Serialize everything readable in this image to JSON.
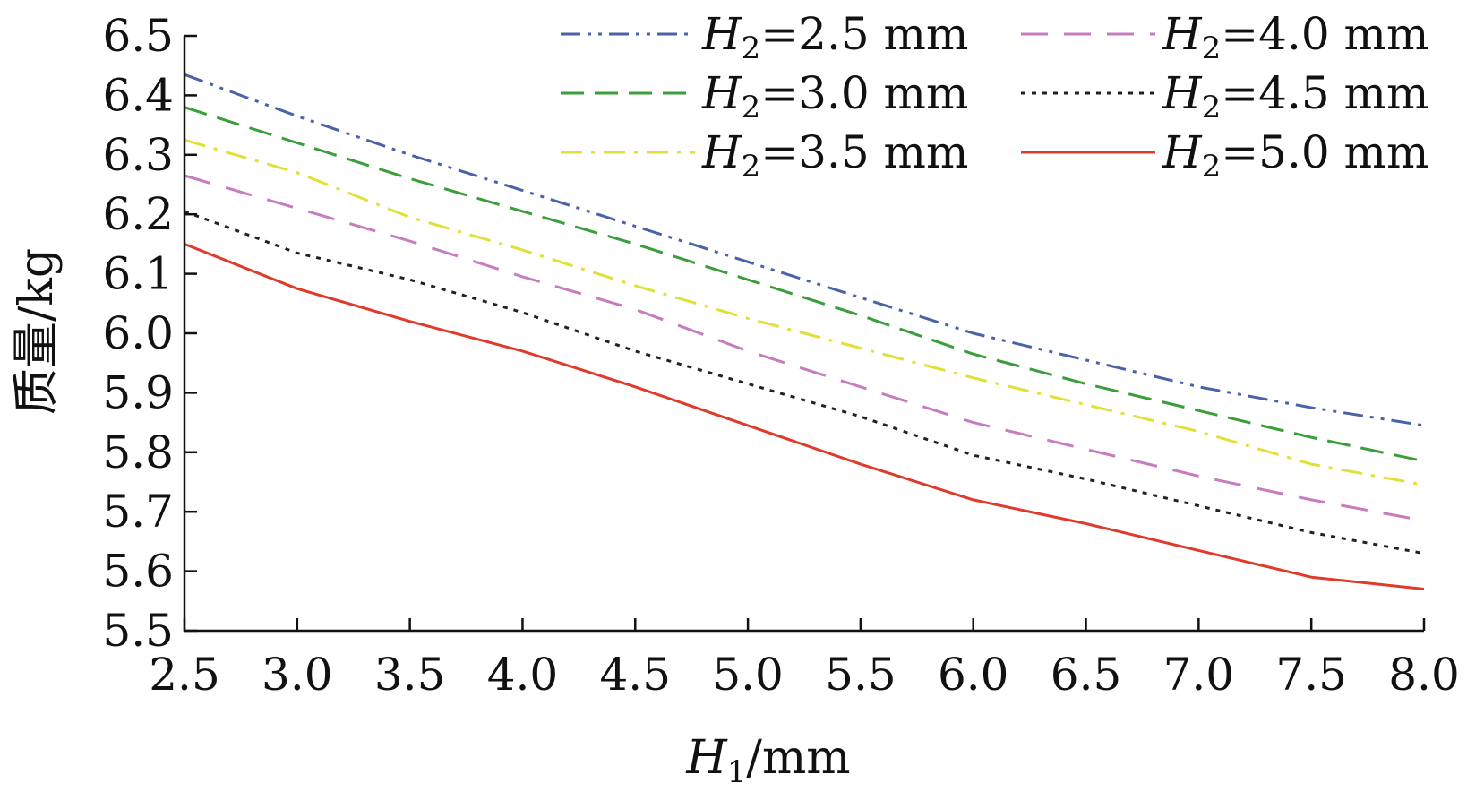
{
  "chart_data": {
    "type": "line",
    "x": [
      2.5,
      3.0,
      3.5,
      4.0,
      4.5,
      5.0,
      5.5,
      6.0,
      6.5,
      7.0,
      7.5,
      8.0
    ],
    "x_tick_labels": [
      "2.5",
      "3.0",
      "3.5",
      "4.0",
      "4.5",
      "5.0",
      "5.5",
      "6.0",
      "6.5",
      "7.0",
      "7.5",
      "8.0"
    ],
    "y_tick_labels": [
      "5.5",
      "5.6",
      "5.7",
      "5.8",
      "5.9",
      "6.0",
      "6.1",
      "6.2",
      "6.3",
      "6.4",
      "6.5"
    ],
    "xlim": [
      2.5,
      8.0
    ],
    "ylim": [
      5.5,
      6.5
    ],
    "xlabel": {
      "var": "H",
      "sub": "1",
      "unit": "/mm"
    },
    "ylabel": "质量/kg",
    "grid": false,
    "legend_placement": "top-right",
    "series": [
      {
        "name": "2.5 mm",
        "var": "H",
        "sub": "2",
        "color": "#4a63a8",
        "dash": "dash-dot-dot",
        "values": [
          6.435,
          6.365,
          6.3,
          6.24,
          6.18,
          6.12,
          6.06,
          6.0,
          5.955,
          5.91,
          5.875,
          5.845
        ]
      },
      {
        "name": "3.0 mm",
        "var": "H",
        "sub": "2",
        "color": "#3a9e3a",
        "dash": "dash",
        "values": [
          6.38,
          6.32,
          6.26,
          6.205,
          6.15,
          6.09,
          6.03,
          5.965,
          5.915,
          5.87,
          5.825,
          5.785
        ]
      },
      {
        "name": "3.5 mm",
        "var": "H",
        "sub": "2",
        "color": "#e0e038",
        "dash": "dash-dot",
        "values": [
          6.325,
          6.27,
          6.195,
          6.14,
          6.08,
          6.025,
          5.975,
          5.925,
          5.88,
          5.835,
          5.78,
          5.745
        ]
      },
      {
        "name": "4.0 mm",
        "var": "H",
        "sub": "2",
        "color": "#c77cc0",
        "dash": "long-dash",
        "values": [
          6.265,
          6.21,
          6.155,
          6.095,
          6.04,
          5.97,
          5.91,
          5.85,
          5.805,
          5.76,
          5.72,
          5.685
        ]
      },
      {
        "name": "4.5 mm",
        "var": "H",
        "sub": "2",
        "color": "#222222",
        "dash": "dot",
        "values": [
          6.205,
          6.135,
          6.09,
          6.035,
          5.97,
          5.915,
          5.86,
          5.795,
          5.755,
          5.71,
          5.665,
          5.63
        ]
      },
      {
        "name": "5.0 mm",
        "var": "H",
        "sub": "2",
        "color": "#e03a2a",
        "dash": "solid",
        "values": [
          6.15,
          6.075,
          6.02,
          5.97,
          5.91,
          5.845,
          5.78,
          5.72,
          5.68,
          5.635,
          5.59,
          5.57
        ]
      }
    ]
  }
}
